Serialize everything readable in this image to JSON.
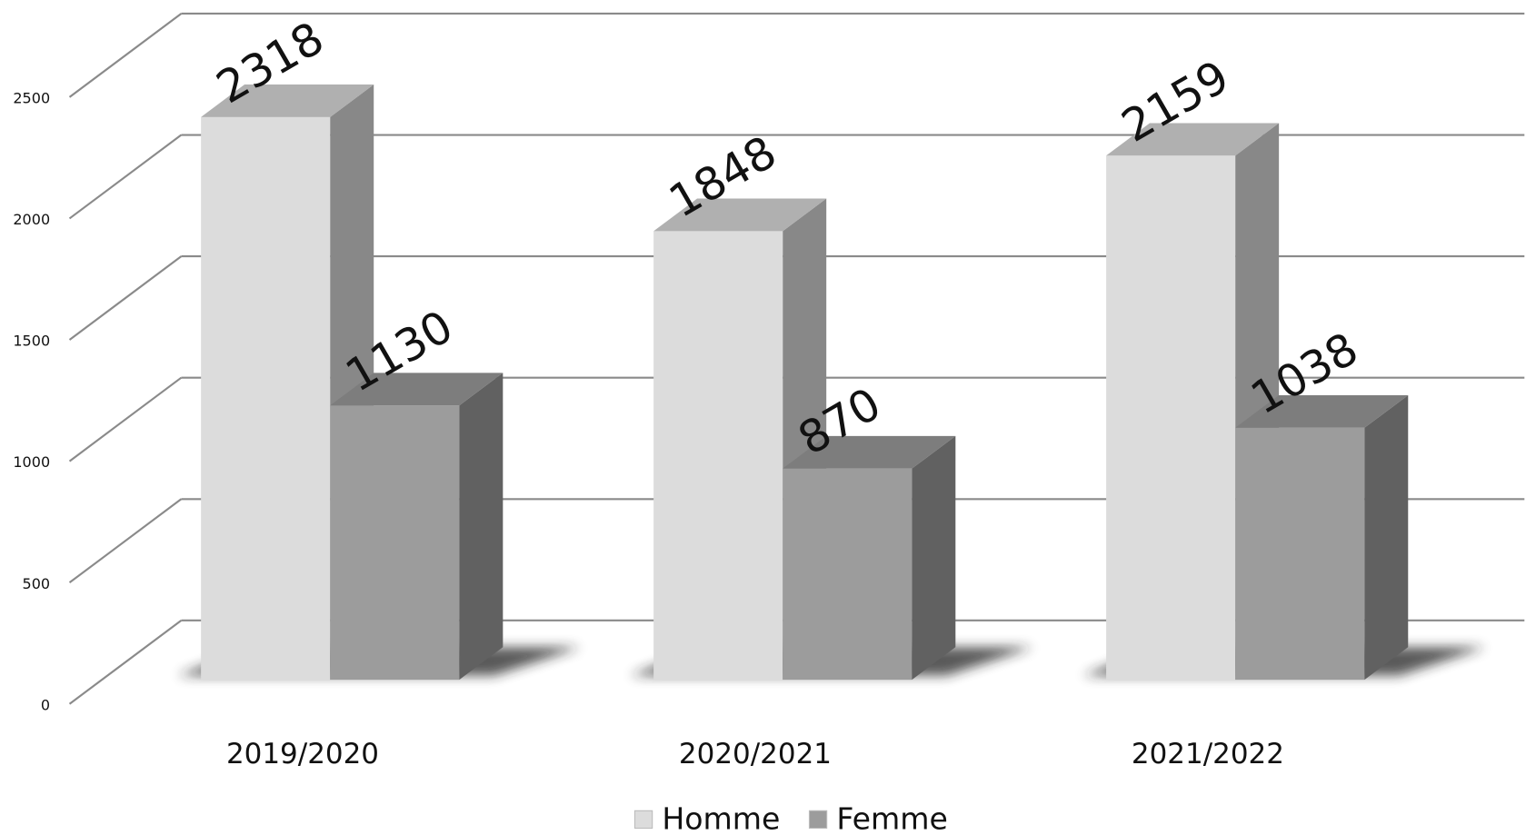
{
  "chart_data": {
    "type": "bar3d",
    "categories": [
      "2019/2020",
      "2020/2021",
      "2021/2022"
    ],
    "series": [
      {
        "name": "Homme",
        "color": "#dcdcdc",
        "values": [
          2318,
          1848,
          2159
        ]
      },
      {
        "name": "Femme",
        "color": "#9c9c9c",
        "values": [
          1130,
          870,
          1038
        ]
      }
    ],
    "ylim": [
      0,
      2500
    ],
    "yticks": [
      0,
      500,
      1000,
      1500,
      2000,
      2500
    ],
    "grid": true,
    "legend": "bottom"
  }
}
